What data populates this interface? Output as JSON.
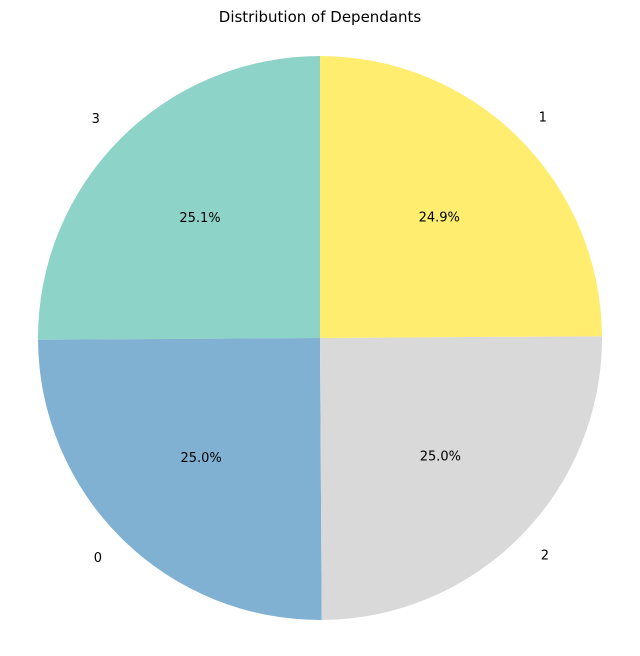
{
  "chart_data": {
    "type": "pie",
    "title": "Distribution of Dependants",
    "start_angle_deg": 90,
    "direction": "counterclockwise",
    "slices": [
      {
        "label": "3",
        "value": 25.1,
        "pct_label": "25.1%",
        "color": "#8dd3c7"
      },
      {
        "label": "0",
        "value": 25.0,
        "pct_label": "25.0%",
        "color": "#80b1d3"
      },
      {
        "label": "2",
        "value": 25.0,
        "pct_label": "25.0%",
        "color": "#d9d9d9"
      },
      {
        "label": "1",
        "value": 24.9,
        "pct_label": "24.9%",
        "color": "#ffed6f"
      }
    ]
  }
}
